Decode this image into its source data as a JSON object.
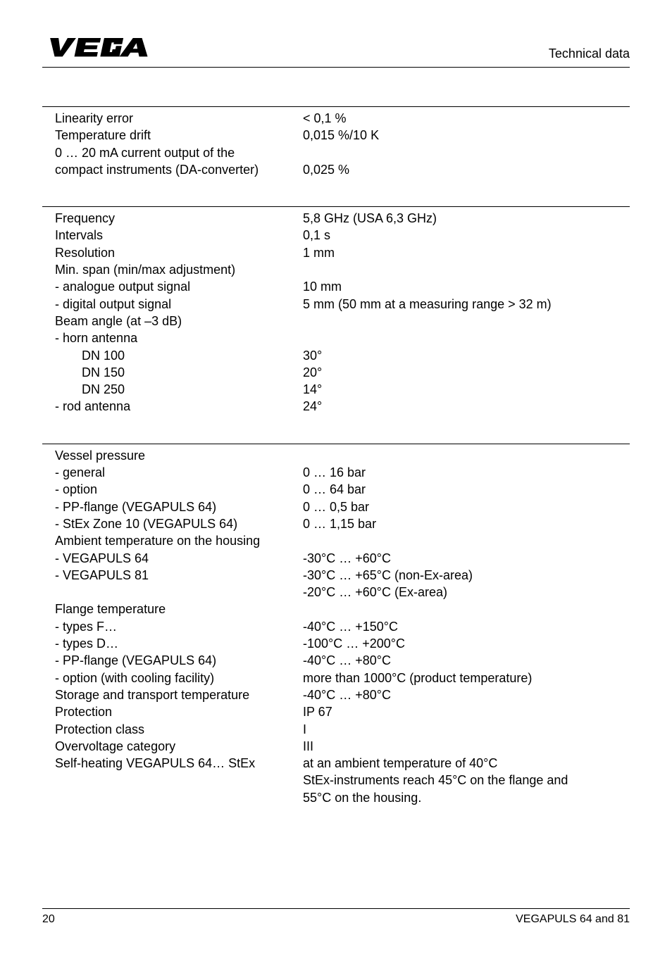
{
  "header": {
    "title": "Technical data"
  },
  "section1": {
    "rows": [
      {
        "label": "Linearity error",
        "value": "< 0,1 %",
        "indent": 1
      },
      {
        "label": "Temperature drift",
        "value": "0,015 %/10 K",
        "indent": 1
      },
      {
        "label": "0 … 20 mA current output of the",
        "value": "",
        "indent": 1
      },
      {
        "label": "compact instruments (DA-converter)",
        "value": "0,025 %",
        "indent": 1
      }
    ]
  },
  "section2": {
    "rows": [
      {
        "label": "Frequency",
        "value": "5,8 GHz (USA 6,3 GHz)",
        "indent": 1
      },
      {
        "label": "Intervals",
        "value": "0,1 s",
        "indent": 1
      },
      {
        "label": "Resolution",
        "value": "1 mm",
        "indent": 1
      },
      {
        "label": "Min. span (min/max adjustment)",
        "value": "",
        "indent": 1
      },
      {
        "label": "-  analogue output signal",
        "value": "10 mm",
        "indent": 1
      },
      {
        "label": "-  digital output signal",
        "value": "5 mm (50 mm at a measuring range > 32 m)",
        "indent": 1
      },
      {
        "label": "Beam angle (at –3 dB)",
        "value": "",
        "indent": 1
      },
      {
        "label": "-  horn antenna",
        "value": "",
        "indent": 1
      },
      {
        "label": "DN 100",
        "value": "30°",
        "indent": 3
      },
      {
        "label": "DN 150",
        "value": "20°",
        "indent": 3
      },
      {
        "label": "DN 250",
        "value": "14°",
        "indent": 3
      },
      {
        "label": "-  rod antenna",
        "value": "24°",
        "indent": 1
      }
    ]
  },
  "section3": {
    "rows": [
      {
        "label": "Vessel pressure",
        "value": "",
        "indent": 1
      },
      {
        "label": "-  general",
        "value": "0 … 16 bar",
        "indent": 1
      },
      {
        "label": "-  option",
        "value": "0 … 64 bar",
        "indent": 1
      },
      {
        "label": "-  PP-flange (VEGAPULS 64)",
        "value": "0 … 0,5 bar",
        "indent": 1
      },
      {
        "label": "-  StEx Zone 10 (VEGAPULS 64)",
        "value": "0 … 1,15 bar",
        "indent": 1
      },
      {
        "label": "Ambient temperature on the housing",
        "value": "",
        "indent": 1
      },
      {
        "label": "-  VEGAPULS 64",
        "value": "-30°C … +60°C",
        "indent": 1
      },
      {
        "label": "-  VEGAPULS 81",
        "value": "-30°C … +65°C (non-Ex-area)",
        "indent": 1
      },
      {
        "label": "",
        "value": "-20°C … +60°C (Ex-area)",
        "indent": 1
      },
      {
        "label": "Flange temperature",
        "value": "",
        "indent": 1
      },
      {
        "label": "-  types F…",
        "value": "-40°C … +150°C",
        "indent": 1
      },
      {
        "label": "-  types D…",
        "value": "-100°C … +200°C",
        "indent": 1
      },
      {
        "label": "-  PP-flange (VEGAPULS 64)",
        "value": "-40°C … +80°C",
        "indent": 1
      },
      {
        "label": "-  option (with cooling facility)",
        "value": "more than 1000°C (product temperature)",
        "indent": 1
      },
      {
        "label": "Storage and transport temperature",
        "value": "-40°C … +80°C",
        "indent": 1
      },
      {
        "label": "Protection",
        "value": "IP 67",
        "indent": 1
      },
      {
        "label": "Protection class",
        "value": "I",
        "indent": 1
      },
      {
        "label": "Overvoltage category",
        "value": "III",
        "indent": 1
      },
      {
        "label": "Self-heating VEGAPULS 64… StEx",
        "value": "at an ambient temperature of 40°C",
        "indent": 1
      },
      {
        "label": "",
        "value": "StEx-instruments reach 45°C on the flange and",
        "indent": 1
      },
      {
        "label": "",
        "value": "55°C on the housing.",
        "indent": 1
      }
    ]
  },
  "footer": {
    "page": "20",
    "doc": "VEGAPULS 64 and 81"
  }
}
